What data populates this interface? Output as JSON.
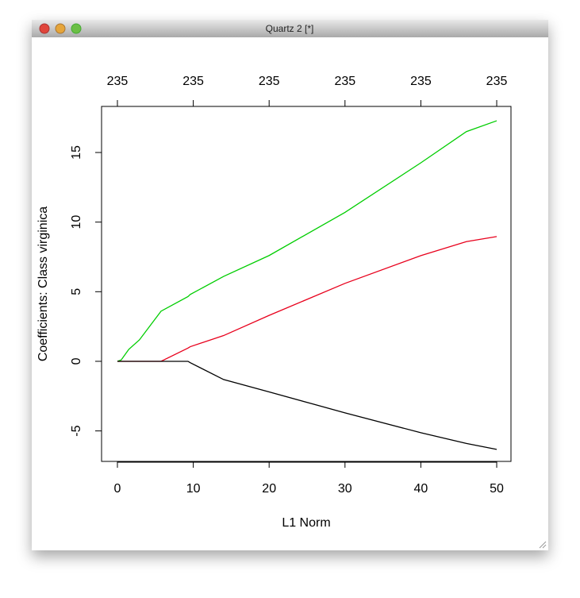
{
  "window": {
    "title": "Quartz 2 [*]"
  },
  "chart_data": {
    "type": "line",
    "xlabel": "L1 Norm",
    "ylabel": "Coefficients: Class virginica",
    "x": [
      0,
      0.5,
      1.5,
      2.9,
      5.75,
      9.3,
      9.6,
      14,
      20,
      30,
      40,
      46,
      50
    ],
    "series": [
      {
        "color": "#00cd00",
        "values": [
          0,
          0.1,
          0.86,
          1.54,
          3.6,
          4.65,
          4.8,
          6.1,
          7.6,
          10.7,
          14.26,
          16.5,
          17.28
        ]
      },
      {
        "color": "#e8001c",
        "values": [
          0,
          0,
          0,
          0,
          0,
          0.95,
          1.05,
          1.85,
          3.3,
          5.6,
          7.59,
          8.6,
          8.96
        ]
      },
      {
        "color": "#000000",
        "values": [
          0,
          0,
          0,
          0,
          0,
          0,
          -0.1,
          -1.31,
          -2.2,
          -3.7,
          -5.13,
          -5.9,
          -6.33
        ]
      }
    ],
    "xlim": [
      -2.09,
      51.88
    ],
    "ylim": [
      -7.19,
      18.31
    ],
    "xticks": [
      0,
      10,
      20,
      30,
      40,
      50
    ],
    "yticks": [
      -5,
      0,
      5,
      10,
      15
    ],
    "top_ticks": [
      {
        "value": 0,
        "label": "235"
      },
      {
        "value": 10,
        "label": "235"
      },
      {
        "value": 20,
        "label": "235"
      },
      {
        "value": 30,
        "label": "235"
      },
      {
        "value": 40,
        "label": "235"
      },
      {
        "value": 50,
        "label": "235"
      }
    ]
  }
}
